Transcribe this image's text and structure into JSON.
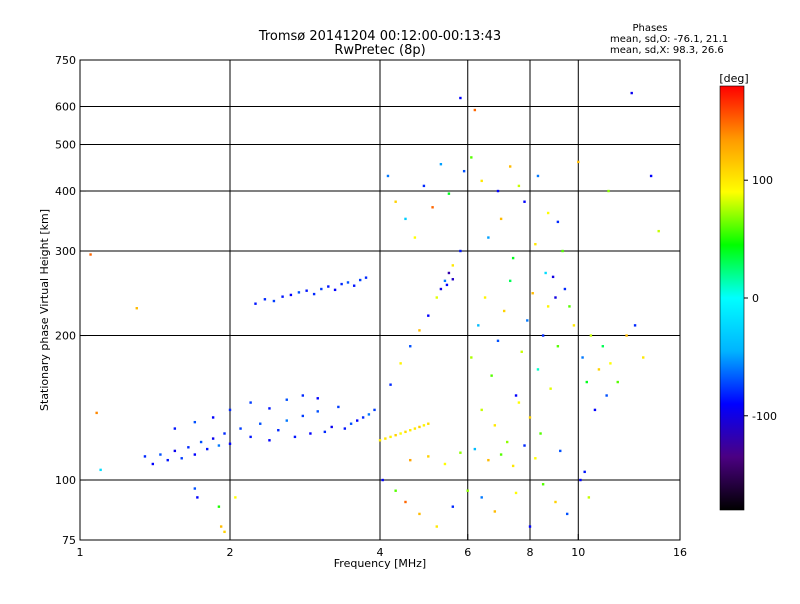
{
  "chart_data": {
    "type": "scatter",
    "title_lines": [
      "Tromsø 20141204 00:12:00-00:13:43",
      "RwPretec (8p)"
    ],
    "phase_stats": {
      "heading": "Phases",
      "line_o": "mean, sd,O: -76.1, 21.1",
      "line_x": "mean, sd,X:  98.3, 26.6"
    },
    "xlabel": "Frequency [MHz]",
    "ylabel": "Stationary phase Virtual Height [km]",
    "x_scale": "log",
    "y_scale": "log",
    "xlim": [
      1,
      16
    ],
    "ylim": [
      75,
      750
    ],
    "x_ticks": [
      1,
      2,
      4,
      6,
      8,
      10,
      16
    ],
    "x_tick_labels": [
      "1",
      "2",
      "4",
      "6",
      "8",
      "10",
      "16"
    ],
    "y_ticks": [
      75,
      100,
      200,
      300,
      400,
      500,
      600,
      750
    ],
    "y_tick_labels": [
      "75",
      "100",
      "200",
      "300",
      "400",
      "500",
      "600",
      "750"
    ],
    "grid_x": [
      2,
      4,
      6,
      8,
      10
    ],
    "grid_y": [
      100,
      200,
      300,
      400,
      500,
      600
    ],
    "grid": true,
    "colorbar": {
      "label": "[deg]",
      "range": [
        -180,
        180
      ],
      "ticks": [
        100,
        0,
        -100
      ],
      "tick_labels": [
        "100",
        "0",
        "-100"
      ],
      "colormap": [
        "#000000",
        "#4b0082",
        "#0000ff",
        "#00b4ff",
        "#00ffff",
        "#00ff00",
        "#ffff00",
        "#ff9900",
        "#ff0000"
      ]
    },
    "series": [
      {
        "points": [
          [
            1.35,
            112,
            -80
          ],
          [
            1.4,
            108,
            -90
          ],
          [
            1.45,
            113,
            -70
          ],
          [
            1.5,
            110,
            -85
          ],
          [
            1.55,
            115,
            -95
          ],
          [
            1.6,
            111,
            -75
          ],
          [
            1.65,
            117,
            -80
          ],
          [
            1.7,
            113,
            -90
          ],
          [
            1.75,
            120,
            -70
          ],
          [
            1.8,
            116,
            -85
          ],
          [
            1.85,
            122,
            -95
          ],
          [
            1.9,
            118,
            -60
          ],
          [
            1.95,
            125,
            -80
          ],
          [
            2.0,
            119,
            -90
          ],
          [
            2.1,
            128,
            -75
          ],
          [
            2.2,
            123,
            -85
          ],
          [
            2.3,
            131,
            -70
          ],
          [
            2.4,
            121,
            -90
          ],
          [
            2.5,
            127,
            -80
          ],
          [
            2.6,
            133,
            -60
          ],
          [
            2.7,
            123,
            -85
          ],
          [
            2.8,
            136,
            -75
          ],
          [
            2.9,
            125,
            -90
          ],
          [
            3.0,
            139,
            -70
          ],
          [
            3.1,
            126,
            -80
          ],
          [
            3.2,
            129,
            -95
          ],
          [
            3.3,
            142,
            -75
          ],
          [
            3.4,
            128,
            -85
          ],
          [
            3.5,
            131,
            -70
          ],
          [
            3.6,
            133,
            -90
          ],
          [
            3.7,
            135,
            -80
          ],
          [
            3.8,
            137,
            -60
          ],
          [
            3.9,
            140,
            -75
          ],
          [
            1.55,
            128,
            -85
          ],
          [
            1.7,
            132,
            -70
          ],
          [
            1.85,
            135,
            -90
          ],
          [
            2.0,
            140,
            -80
          ],
          [
            2.2,
            145,
            -75
          ],
          [
            2.4,
            141,
            -85
          ],
          [
            2.6,
            147,
            -70
          ],
          [
            2.8,
            150,
            -80
          ],
          [
            3.0,
            148,
            -90
          ],
          [
            2.25,
            233,
            -85
          ],
          [
            2.35,
            238,
            -80
          ],
          [
            2.45,
            236,
            -75
          ],
          [
            2.55,
            241,
            -85
          ],
          [
            2.65,
            243,
            -90
          ],
          [
            2.75,
            246,
            -70
          ],
          [
            2.85,
            248,
            -85
          ],
          [
            2.95,
            244,
            -80
          ],
          [
            3.05,
            250,
            -75
          ],
          [
            3.15,
            253,
            -85
          ],
          [
            3.25,
            249,
            -90
          ],
          [
            3.35,
            256,
            -80
          ],
          [
            3.45,
            258,
            -70
          ],
          [
            3.55,
            254,
            -85
          ],
          [
            3.65,
            261,
            -75
          ],
          [
            3.75,
            264,
            -80
          ],
          [
            4.0,
            121,
            98
          ],
          [
            4.1,
            122,
            102
          ],
          [
            4.2,
            123,
            95
          ],
          [
            4.3,
            124,
            110
          ],
          [
            4.4,
            125,
            90
          ],
          [
            4.5,
            126,
            105
          ],
          [
            4.6,
            127,
            98
          ],
          [
            4.7,
            128,
            100
          ],
          [
            4.8,
            129,
            112
          ],
          [
            4.9,
            130,
            94
          ],
          [
            5.0,
            131,
            106
          ],
          [
            4.2,
            158,
            -80
          ],
          [
            4.4,
            175,
            95
          ],
          [
            4.6,
            190,
            -70
          ],
          [
            4.8,
            205,
            120
          ],
          [
            5.0,
            220,
            -90
          ],
          [
            5.2,
            240,
            85
          ],
          [
            5.4,
            260,
            -60
          ],
          [
            5.6,
            280,
            100
          ],
          [
            5.8,
            300,
            -85
          ],
          [
            5.3,
            250,
            -100
          ],
          [
            5.5,
            270,
            -120
          ],
          [
            5.45,
            255,
            -90
          ],
          [
            5.6,
            262,
            -110
          ],
          [
            5.8,
            625,
            -90
          ],
          [
            4.15,
            430,
            -60
          ],
          [
            4.3,
            380,
            110
          ],
          [
            4.5,
            350,
            -30
          ],
          [
            4.7,
            320,
            90
          ],
          [
            4.9,
            410,
            -80
          ],
          [
            5.1,
            370,
            150
          ],
          [
            5.3,
            455,
            -50
          ],
          [
            5.5,
            395,
            40
          ],
          [
            6.2,
            590,
            150
          ],
          [
            6.1,
            180,
            75
          ],
          [
            6.3,
            210,
            -40
          ],
          [
            6.5,
            240,
            95
          ],
          [
            6.7,
            165,
            60
          ],
          [
            6.9,
            195,
            -70
          ],
          [
            7.1,
            225,
            110
          ],
          [
            7.3,
            260,
            30
          ],
          [
            7.5,
            150,
            -90
          ],
          [
            7.7,
            185,
            80
          ],
          [
            7.9,
            215,
            -60
          ],
          [
            8.1,
            245,
            120
          ],
          [
            8.3,
            170,
            10
          ],
          [
            8.5,
            200,
            -80
          ],
          [
            8.7,
            230,
            95
          ],
          [
            8.9,
            265,
            -100
          ],
          [
            9.1,
            190,
            60
          ],
          [
            6.4,
            140,
            80
          ],
          [
            6.8,
            130,
            100
          ],
          [
            7.2,
            120,
            70
          ],
          [
            7.6,
            145,
            90
          ],
          [
            8.0,
            135,
            110
          ],
          [
            8.4,
            125,
            60
          ],
          [
            8.8,
            155,
            85
          ],
          [
            9.2,
            115,
            -70
          ],
          [
            6.6,
            320,
            -50
          ],
          [
            7.0,
            350,
            120
          ],
          [
            7.4,
            290,
            40
          ],
          [
            7.8,
            380,
            -90
          ],
          [
            8.2,
            310,
            100
          ],
          [
            8.6,
            270,
            -20
          ],
          [
            9.0,
            240,
            -100
          ],
          [
            9.4,
            250,
            -80
          ],
          [
            9.6,
            230,
            60
          ],
          [
            9.8,
            210,
            100
          ],
          [
            10.2,
            180,
            -60
          ],
          [
            10.4,
            160,
            40
          ],
          [
            10.6,
            200,
            80
          ],
          [
            10.8,
            140,
            -90
          ],
          [
            11.0,
            170,
            110
          ],
          [
            11.2,
            190,
            30
          ],
          [
            11.4,
            150,
            -70
          ],
          [
            11.6,
            175,
            90
          ],
          [
            12.0,
            160,
            60
          ],
          [
            12.5,
            200,
            120
          ],
          [
            13.0,
            210,
            -80
          ],
          [
            13.5,
            180,
            100
          ],
          [
            14.0,
            430,
            -90
          ],
          [
            14.5,
            330,
            80
          ],
          [
            10.1,
            100,
            -90
          ],
          [
            10.3,
            104,
            -85
          ],
          [
            12.8,
            640,
            -95
          ],
          [
            11.5,
            400,
            70
          ],
          [
            10.0,
            460,
            120
          ],
          [
            1.05,
            295,
            150
          ],
          [
            1.08,
            138,
            140
          ],
          [
            1.1,
            105,
            -20
          ],
          [
            1.3,
            228,
            120
          ],
          [
            1.7,
            96,
            -70
          ],
          [
            1.72,
            92,
            -90
          ],
          [
            1.9,
            88,
            50
          ],
          [
            1.92,
            80,
            120
          ],
          [
            1.95,
            78,
            110
          ],
          [
            2.05,
            92,
            90
          ],
          [
            4.05,
            100,
            -90
          ],
          [
            4.3,
            95,
            60
          ],
          [
            4.5,
            90,
            150
          ],
          [
            4.8,
            85,
            120
          ],
          [
            5.2,
            80,
            100
          ],
          [
            5.6,
            88,
            -80
          ],
          [
            6.0,
            95,
            70
          ],
          [
            6.4,
            92,
            -60
          ],
          [
            6.8,
            86,
            120
          ],
          [
            7.5,
            94,
            90
          ],
          [
            8.0,
            80,
            -90
          ],
          [
            8.5,
            98,
            60
          ],
          [
            9.0,
            90,
            110
          ],
          [
            9.5,
            85,
            -70
          ],
          [
            10.5,
            92,
            80
          ],
          [
            4.6,
            110,
            130
          ],
          [
            5.0,
            112,
            110
          ],
          [
            5.4,
            108,
            90
          ],
          [
            5.8,
            114,
            70
          ],
          [
            6.2,
            116,
            -40
          ],
          [
            6.6,
            110,
            120
          ],
          [
            7.0,
            113,
            60
          ],
          [
            7.4,
            107,
            100
          ],
          [
            7.8,
            118,
            -80
          ],
          [
            8.2,
            111,
            90
          ],
          [
            5.9,
            440,
            -70
          ],
          [
            6.1,
            470,
            60
          ],
          [
            6.4,
            420,
            100
          ],
          [
            6.9,
            400,
            -90
          ],
          [
            7.3,
            450,
            120
          ],
          [
            7.6,
            410,
            80
          ],
          [
            8.3,
            430,
            -60
          ],
          [
            8.7,
            360,
            90
          ],
          [
            9.1,
            345,
            -80
          ],
          [
            9.3,
            300,
            60
          ]
        ]
      }
    ]
  }
}
